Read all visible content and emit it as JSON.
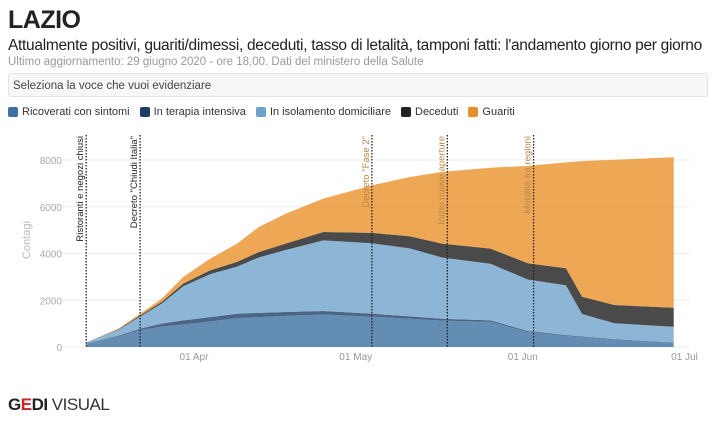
{
  "header": {
    "title": "LAZIO",
    "subtitle": "Attualmente positivi, guariti/dimessi, deceduti, tasso di letalità, tamponi fatti: l'andamento giorno per giorno",
    "updated": "Ultimo aggiornamento: 29 giugno 2020 - ore 18,00. Dati del ministero della Salute"
  },
  "selector": {
    "placeholder": "Seleziona la voce che vuoi evidenziare"
  },
  "logo": {
    "brand_bold": "GEDI",
    "brand_light": "VISUAL",
    "accent": "#d0202a"
  },
  "chart_data": {
    "type": "area",
    "stacked": true,
    "ylabel": "Contagi",
    "ylim": [
      0,
      8800
    ],
    "yticks": [
      0,
      2000,
      4000,
      6000,
      8000
    ],
    "xlim": [
      "2020-03-01",
      "2020-07-02"
    ],
    "xticks": [
      {
        "date": "2020-04-01",
        "label": "01 Apr"
      },
      {
        "date": "2020-05-01",
        "label": "01 May"
      },
      {
        "date": "2020-06-01",
        "label": "01 Jun"
      },
      {
        "date": "2020-07-01",
        "label": "01 Jul"
      }
    ],
    "grid": true,
    "legend_position": "top-left",
    "x": [
      "2020-03-12",
      "2020-03-18",
      "2020-03-22",
      "2020-03-26",
      "2020-03-30",
      "2020-04-04",
      "2020-04-09",
      "2020-04-13",
      "2020-04-18",
      "2020-04-25",
      "2020-05-04",
      "2020-05-11",
      "2020-05-17",
      "2020-05-26",
      "2020-06-02",
      "2020-06-09",
      "2020-06-12",
      "2020-06-18",
      "2020-06-29"
    ],
    "series": [
      {
        "name": "Ricoverati con sintomi",
        "color": "#3c71a0",
        "values": [
          140,
          450,
          725,
          870,
          960,
          1090,
          1235,
          1280,
          1330,
          1390,
          1300,
          1210,
          1130,
          1080,
          635,
          475,
          420,
          305,
          190
        ]
      },
      {
        "name": "In terapia intensiva",
        "color": "#1f3f66",
        "values": [
          10,
          30,
          60,
          130,
          180,
          190,
          190,
          180,
          170,
          150,
          125,
          100,
          80,
          60,
          45,
          35,
          30,
          25,
          10
        ]
      },
      {
        "name": "In isolamento domiciliare",
        "color": "#6fa2cc",
        "values": [
          40,
          260,
          515,
          855,
          1460,
          1840,
          2015,
          2370,
          2650,
          3020,
          3015,
          2910,
          2620,
          2420,
          2200,
          2130,
          960,
          685,
          667
        ]
      },
      {
        "name": "Deceduti",
        "color": "#222222",
        "values": [
          5,
          20,
          50,
          70,
          110,
          160,
          200,
          230,
          270,
          360,
          440,
          520,
          590,
          650,
          700,
          730,
          740,
          780,
          813
        ]
      },
      {
        "name": "Guariti",
        "color": "#e8912b",
        "values": [
          5,
          25,
          75,
          145,
          285,
          500,
          780,
          1070,
          1280,
          1425,
          2035,
          2530,
          3070,
          3460,
          4170,
          4530,
          5800,
          6215,
          6435
        ]
      }
    ],
    "annotations": [
      {
        "date": "2020-03-12",
        "label": "Ristoranti e negozi chiusi"
      },
      {
        "date": "2020-03-22",
        "label": "Decreto \"Chiudi Italia\""
      },
      {
        "date": "2020-05-04",
        "label": "Decreto \"Fase 2\""
      },
      {
        "date": "2020-05-18",
        "label": "Inizio nuove aperture"
      },
      {
        "date": "2020-06-03",
        "label": "Mobilità tra regioni"
      }
    ]
  }
}
